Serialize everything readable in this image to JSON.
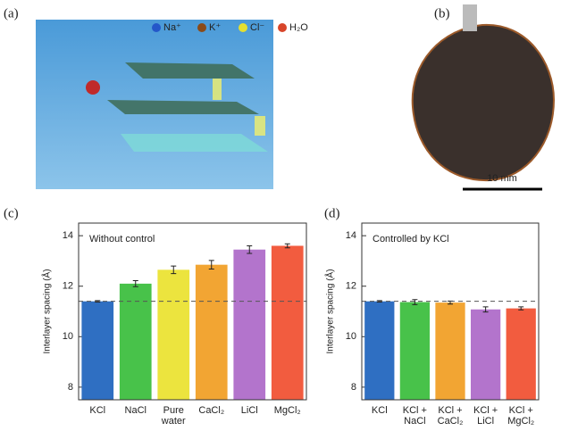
{
  "panel_a": {
    "label": "(a)",
    "legend": [
      "Na⁺",
      "K⁺",
      "Cl⁻",
      "H₂O"
    ]
  },
  "panel_b": {
    "label": "(b)",
    "scale_bar": "10 mm"
  },
  "chart_data": [
    {
      "type": "bar",
      "panel_label": "(c)",
      "annotation": "Without control",
      "ylabel": "Interlayer spacing (Å)",
      "categories": [
        [
          "KCl"
        ],
        [
          "NaCl"
        ],
        [
          "Pure",
          "water"
        ],
        [
          "CaCl₂"
        ],
        [
          "LiCl"
        ],
        [
          "MgCl₂"
        ]
      ],
      "values": [
        11.4,
        12.1,
        12.65,
        12.85,
        13.45,
        13.6
      ],
      "errors": [
        0.03,
        0.12,
        0.15,
        0.17,
        0.15,
        0.08
      ],
      "colors": [
        "#2f6fc2",
        "#48c24a",
        "#ece43e",
        "#f2a533",
        "#b374cc",
        "#f25c3f"
      ],
      "reference": 11.4,
      "ylim": [
        7.5,
        14.5
      ],
      "yticks": [
        8,
        10,
        12,
        14
      ]
    },
    {
      "type": "bar",
      "panel_label": "(d)",
      "annotation": "Controlled by KCl",
      "ylabel": "Interlayer spacing (Å)",
      "categories": [
        [
          "KCl"
        ],
        [
          "KCl +",
          "NaCl"
        ],
        [
          "KCl +",
          "CaCl₂"
        ],
        [
          "KCl +",
          "LiCl"
        ],
        [
          "KCl +",
          "MgCl₂"
        ]
      ],
      "values": [
        11.4,
        11.37,
        11.35,
        11.08,
        11.12
      ],
      "errors": [
        0.03,
        0.1,
        0.06,
        0.1,
        0.06
      ],
      "colors": [
        "#2f6fc2",
        "#48c24a",
        "#f2a533",
        "#b374cc",
        "#f25c3f"
      ],
      "reference": 11.4,
      "ylim": [
        7.5,
        14.5
      ],
      "yticks": [
        8,
        10,
        12,
        14
      ]
    }
  ]
}
